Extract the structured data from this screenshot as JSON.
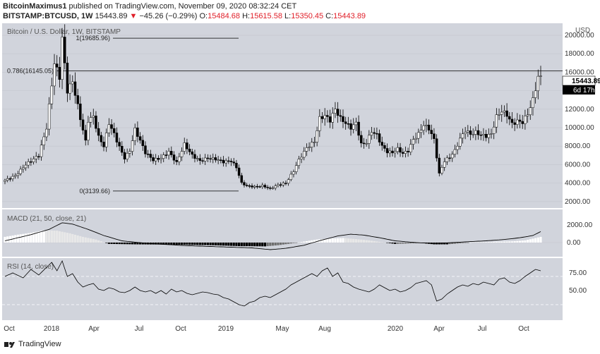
{
  "header": {
    "author": "BitcoinMaximus1",
    "published": "published on TradingView.com, November 09, 2020 08:32:24 CET",
    "symbol": "BITSTAMP:BTCUSD, 1W",
    "last": "15443.89",
    "change": "−45.26 (−0.29%)",
    "o_label": "O:",
    "o": "15484.68",
    "h_label": "H:",
    "h": "15615.58",
    "l_label": "L:",
    "l": "15350.45",
    "c_label": "C:",
    "c": "15443.89"
  },
  "chart_title": "Bitcoin / U.S. Dollar, 1W, BITSTAMP",
  "currency": "USD",
  "price_badge": "15443.89",
  "time_badge": "6d 17h",
  "fib_levels": [
    {
      "label": "1(19685.96)",
      "value": 19685.96
    },
    {
      "label": "0.786(16145.05)",
      "value": 16145.05
    },
    {
      "label": "0(3139.66)",
      "value": 3139.66
    }
  ],
  "macd_label": "MACD (21, 50, close, 21)",
  "rsi_label": "RSI (14, close)",
  "footer_brand": "TradingView",
  "colors": {
    "bg": "#d1d4dc",
    "up": "#ffffff",
    "down": "#000000",
    "fib": "#000000"
  },
  "chart_data": {
    "type": "candlestick",
    "price_axis": {
      "ticks": [
        "20000.00",
        "18000.00",
        "16000.00",
        "14000.00",
        "12000.00",
        "10000.00",
        "8000.00",
        "6000.00",
        "4000.00",
        "2000.00"
      ],
      "ylim": [
        1300,
        21300
      ]
    },
    "macd_axis": {
      "ticks": [
        "2000.00",
        "0.00"
      ]
    },
    "rsi_axis": {
      "ticks": [
        "75.00",
        "50.00"
      ]
    },
    "x_ticks": [
      "Oct",
      "2018",
      "Apr",
      "Jul",
      "Oct",
      "2019",
      "May",
      "Aug",
      "2020",
      "Apr",
      "Jul",
      "Oct"
    ],
    "price_path": [
      [
        0,
        4300
      ],
      [
        4,
        4800
      ],
      [
        8,
        6000
      ],
      [
        13,
        7000
      ],
      [
        16,
        10000
      ],
      [
        19,
        17000
      ],
      [
        21,
        15500
      ],
      [
        22,
        19685
      ],
      [
        24,
        14000
      ],
      [
        26,
        15000
      ],
      [
        29,
        11000
      ],
      [
        31,
        8500
      ],
      [
        32,
        10800
      ],
      [
        34,
        11200
      ],
      [
        36,
        9000
      ],
      [
        38,
        8000
      ],
      [
        40,
        10500
      ],
      [
        42,
        9300
      ],
      [
        44,
        7900
      ],
      [
        46,
        6700
      ],
      [
        48,
        7500
      ],
      [
        50,
        9800
      ],
      [
        52,
        8600
      ],
      [
        54,
        7300
      ],
      [
        57,
        6500
      ],
      [
        60,
        6700
      ],
      [
        63,
        7400
      ],
      [
        66,
        6200
      ],
      [
        69,
        8200
      ],
      [
        72,
        7000
      ],
      [
        75,
        6400
      ],
      [
        78,
        6700
      ],
      [
        81,
        6600
      ],
      [
        84,
        6300
      ],
      [
        87,
        6400
      ],
      [
        89,
        5700
      ],
      [
        91,
        4000
      ],
      [
        93,
        3700
      ],
      [
        96,
        3600
      ],
      [
        99,
        3700
      ],
      [
        102,
        3400
      ],
      [
        105,
        3800
      ],
      [
        108,
        4000
      ],
      [
        111,
        5300
      ],
      [
        113,
        6500
      ],
      [
        116,
        7800
      ],
      [
        119,
        8500
      ],
      [
        121,
        11000
      ],
      [
        123,
        11300
      ],
      [
        125,
        10800
      ],
      [
        127,
        12000
      ],
      [
        129,
        11000
      ],
      [
        131,
        10500
      ],
      [
        133,
        10000
      ],
      [
        135,
        10500
      ],
      [
        137,
        8200
      ],
      [
        139,
        8400
      ],
      [
        141,
        9600
      ],
      [
        143,
        9200
      ],
      [
        145,
        8000
      ],
      [
        147,
        7400
      ],
      [
        149,
        7300
      ],
      [
        151,
        7700
      ],
      [
        153,
        7200
      ],
      [
        155,
        7500
      ],
      [
        157,
        8700
      ],
      [
        159,
        9300
      ],
      [
        161,
        10300
      ],
      [
        163,
        9900
      ],
      [
        165,
        8700
      ],
      [
        167,
        5000
      ],
      [
        169,
        6400
      ],
      [
        171,
        6800
      ],
      [
        173,
        7500
      ],
      [
        175,
        8800
      ],
      [
        177,
        9700
      ],
      [
        179,
        9300
      ],
      [
        181,
        9500
      ],
      [
        183,
        9200
      ],
      [
        185,
        9100
      ],
      [
        187,
        9300
      ],
      [
        189,
        11200
      ],
      [
        191,
        11800
      ],
      [
        193,
        11400
      ],
      [
        195,
        10400
      ],
      [
        197,
        10700
      ],
      [
        199,
        10600
      ],
      [
        201,
        11500
      ],
      [
        203,
        13000
      ],
      [
        205,
        15484
      ],
      [
        206,
        15443
      ]
    ],
    "macd_hist": [
      [
        0,
        650
      ],
      [
        5,
        900
      ],
      [
        10,
        1100
      ],
      [
        15,
        1400
      ],
      [
        20,
        1350
      ],
      [
        25,
        1050
      ],
      [
        30,
        650
      ],
      [
        35,
        350
      ],
      [
        40,
        -150
      ],
      [
        50,
        -200
      ],
      [
        60,
        -220
      ],
      [
        70,
        -250
      ],
      [
        80,
        -300
      ],
      [
        90,
        -400
      ],
      [
        100,
        -430
      ],
      [
        105,
        -300
      ],
      [
        110,
        -100
      ],
      [
        115,
        120
      ],
      [
        120,
        350
      ],
      [
        125,
        450
      ],
      [
        130,
        520
      ],
      [
        135,
        400
      ],
      [
        140,
        250
      ],
      [
        145,
        50
      ],
      [
        150,
        -150
      ],
      [
        155,
        -100
      ],
      [
        160,
        -50
      ],
      [
        165,
        -200
      ],
      [
        170,
        -200
      ],
      [
        175,
        -80
      ],
      [
        180,
        40
      ],
      [
        185,
        60
      ],
      [
        190,
        100
      ],
      [
        195,
        140
      ],
      [
        200,
        250
      ],
      [
        206,
        650
      ]
    ],
    "macd_line": [
      [
        0,
        200
      ],
      [
        10,
        900
      ],
      [
        17,
        1500
      ],
      [
        22,
        2250
      ],
      [
        26,
        2100
      ],
      [
        32,
        1500
      ],
      [
        38,
        800
      ],
      [
        45,
        200
      ],
      [
        55,
        -100
      ],
      [
        70,
        -350
      ],
      [
        85,
        -500
      ],
      [
        95,
        -600
      ],
      [
        102,
        -800
      ],
      [
        108,
        -650
      ],
      [
        115,
        -300
      ],
      [
        122,
        300
      ],
      [
        128,
        750
      ],
      [
        133,
        950
      ],
      [
        138,
        850
      ],
      [
        145,
        500
      ],
      [
        150,
        200
      ],
      [
        158,
        0
      ],
      [
        165,
        -100
      ],
      [
        172,
        0
      ],
      [
        178,
        100
      ],
      [
        185,
        200
      ],
      [
        192,
        350
      ],
      [
        198,
        550
      ],
      [
        203,
        800
      ],
      [
        206,
        1250
      ]
    ],
    "rsi": [
      [
        0,
        70
      ],
      [
        3,
        75
      ],
      [
        7,
        68
      ],
      [
        10,
        80
      ],
      [
        13,
        72
      ],
      [
        16,
        83
      ],
      [
        18,
        90
      ],
      [
        20,
        78
      ],
      [
        22,
        92
      ],
      [
        24,
        70
      ],
      [
        26,
        74
      ],
      [
        28,
        62
      ],
      [
        30,
        55
      ],
      [
        32,
        58
      ],
      [
        34,
        60
      ],
      [
        36,
        52
      ],
      [
        38,
        50
      ],
      [
        40,
        54
      ],
      [
        42,
        52
      ],
      [
        44,
        48
      ],
      [
        46,
        47
      ],
      [
        48,
        50
      ],
      [
        50,
        55
      ],
      [
        52,
        50
      ],
      [
        54,
        48
      ],
      [
        56,
        50
      ],
      [
        58,
        46
      ],
      [
        60,
        50
      ],
      [
        62,
        45
      ],
      [
        64,
        52
      ],
      [
        66,
        48
      ],
      [
        68,
        50
      ],
      [
        70,
        46
      ],
      [
        72,
        44
      ],
      [
        74,
        46
      ],
      [
        76,
        48
      ],
      [
        78,
        47
      ],
      [
        80,
        45
      ],
      [
        82,
        44
      ],
      [
        84,
        40
      ],
      [
        86,
        38
      ],
      [
        88,
        34
      ],
      [
        90,
        30
      ],
      [
        92,
        28
      ],
      [
        94,
        33
      ],
      [
        96,
        35
      ],
      [
        98,
        40
      ],
      [
        100,
        42
      ],
      [
        102,
        40
      ],
      [
        104,
        44
      ],
      [
        106,
        48
      ],
      [
        108,
        52
      ],
      [
        110,
        58
      ],
      [
        112,
        62
      ],
      [
        114,
        66
      ],
      [
        116,
        70
      ],
      [
        118,
        74
      ],
      [
        120,
        70
      ],
      [
        122,
        78
      ],
      [
        124,
        82
      ],
      [
        126,
        70
      ],
      [
        128,
        75
      ],
      [
        130,
        62
      ],
      [
        132,
        60
      ],
      [
        134,
        55
      ],
      [
        136,
        52
      ],
      [
        138,
        50
      ],
      [
        140,
        48
      ],
      [
        142,
        52
      ],
      [
        144,
        58
      ],
      [
        146,
        54
      ],
      [
        148,
        50
      ],
      [
        150,
        52
      ],
      [
        152,
        48
      ],
      [
        154,
        50
      ],
      [
        156,
        54
      ],
      [
        158,
        60
      ],
      [
        160,
        62
      ],
      [
        162,
        64
      ],
      [
        164,
        58
      ],
      [
        166,
        35
      ],
      [
        168,
        38
      ],
      [
        170,
        45
      ],
      [
        172,
        50
      ],
      [
        174,
        55
      ],
      [
        176,
        58
      ],
      [
        178,
        56
      ],
      [
        180,
        60
      ],
      [
        182,
        58
      ],
      [
        184,
        62
      ],
      [
        186,
        60
      ],
      [
        188,
        58
      ],
      [
        190,
        66
      ],
      [
        192,
        68
      ],
      [
        194,
        62
      ],
      [
        196,
        60
      ],
      [
        198,
        64
      ],
      [
        200,
        70
      ],
      [
        202,
        75
      ],
      [
        204,
        80
      ],
      [
        206,
        78
      ]
    ]
  }
}
